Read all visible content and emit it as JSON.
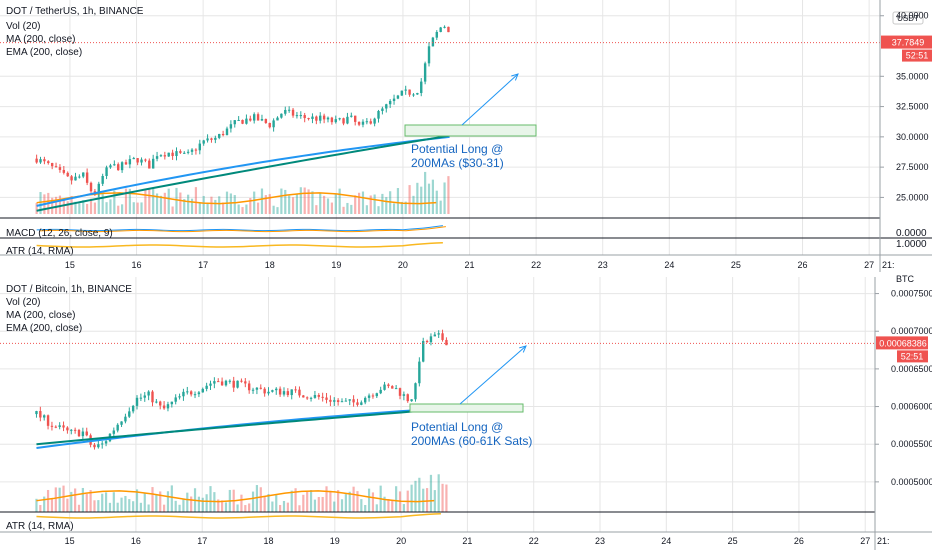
{
  "colors": {
    "up": "#26a69a",
    "down": "#ef5350",
    "ma200": "#2196f3",
    "ema200": "#00897b",
    "vol_ma": "#ff9800",
    "atr": "#f9b820",
    "annotation": "#1565c0",
    "box_fill": "#e8f5e9",
    "box_stroke": "#66bb6a",
    "price_tag": "#ef5350",
    "grid": "#e6e6e6"
  },
  "charts": [
    {
      "id": "usdt",
      "title": "DOT / TetherUS, 1h, BINANCE",
      "currency_label": "USDT",
      "indicators": [
        "Vol (20)",
        "MA (200, close)",
        "EMA (200, close)"
      ],
      "y_ticks": [
        "40.0000",
        "35.0000",
        "32.5000",
        "30.0000",
        "27.5000",
        "25.0000"
      ],
      "y_tick_values": [
        40,
        35,
        32.5,
        30,
        27.5,
        25
      ],
      "last_price": "37.7849",
      "last_value": 37.7849,
      "countdown": "52:51",
      "annotation": [
        "Potential Long @",
        "200MAs ($30-31)"
      ],
      "target_box": [
        30,
        31
      ],
      "macd_label": "MACD (12, 26, close, 9)",
      "macd_value": "0.0000",
      "atr_label": "ATR (14, RMA)",
      "atr_value": "1.0000"
    },
    {
      "id": "btc",
      "title": "DOT / Bitcoin, 1h, BINANCE",
      "currency_label": "BTC",
      "indicators": [
        "Vol (20)",
        "MA (200, close)",
        "EMA (200, close)"
      ],
      "y_ticks": [
        "0.00075000",
        "0.00070000",
        "0.00065000",
        "0.00060000",
        "0.00055000",
        "0.00050000"
      ],
      "y_tick_values": [
        0.00075,
        0.0007,
        0.00065,
        0.0006,
        0.00055,
        0.0005
      ],
      "last_price": "0.00068386",
      "last_value": 0.00068386,
      "countdown": "52:51",
      "annotation": [
        "Potential Long @",
        "200MAs (60-61K Sats)"
      ],
      "target_box": [
        0.0006,
        0.00061
      ],
      "atr_label": "ATR (14, RMA)"
    }
  ],
  "x_ticks": [
    "15",
    "16",
    "17",
    "18",
    "19",
    "20",
    "21",
    "22",
    "23",
    "24",
    "25",
    "26",
    "27",
    "21:"
  ],
  "chart_data": [
    {
      "type": "candlestick",
      "title": "DOT / TetherUS, 1h, BINANCE",
      "ylim": [
        23.3,
        41.3
      ],
      "x_days": [
        15,
        16,
        17,
        18,
        19,
        20,
        21,
        22,
        23,
        24,
        25,
        26,
        27
      ],
      "close_path_x": [
        14.5,
        14.75,
        15,
        15.2,
        15.3,
        15.4,
        15.5,
        15.6,
        15.75,
        16,
        16.2,
        16.3,
        16.5,
        16.75,
        17,
        17.2,
        17.5,
        17.75,
        18,
        18.2,
        18.5,
        18.75,
        19,
        19.2,
        19.35,
        19.5,
        19.75,
        20,
        20.15,
        20.25,
        20.4,
        20.5,
        20.6,
        20.7
      ],
      "close_path_y": [
        28.2,
        27.4,
        26.4,
        26.8,
        25.6,
        25.4,
        26.8,
        27.6,
        27.5,
        28.2,
        27.6,
        28.6,
        28.7,
        28.4,
        29.6,
        29.9,
        31.2,
        31.6,
        31.0,
        32.1,
        31.6,
        31.5,
        31.2,
        31.6,
        30.8,
        31.3,
        32.5,
        33.6,
        33.7,
        34.0,
        37.5,
        38.5,
        39.3,
        38.8
      ],
      "ma200": {
        "x": [
          14.5,
          20.7
        ],
        "y": [
          24.3,
          30.0
        ]
      },
      "ema200": {
        "x": [
          14.5,
          20.7
        ],
        "y": [
          23.9,
          30.1
        ]
      },
      "last": 37.7849,
      "target_zone": [
        30,
        31
      ]
    },
    {
      "type": "candlestick",
      "title": "DOT / Bitcoin, 1h, BINANCE",
      "ylim": [
        0.00046,
        0.000772
      ],
      "x_days": [
        15,
        16,
        17,
        18,
        19,
        20,
        21,
        22,
        23,
        24,
        25,
        26,
        27
      ],
      "close_path_x": [
        14.5,
        14.75,
        15,
        15.2,
        15.35,
        15.5,
        15.75,
        16,
        16.2,
        16.4,
        16.7,
        17,
        17.2,
        17.5,
        17.75,
        18,
        18.3,
        18.6,
        18.9,
        19.1,
        19.3,
        19.5,
        19.7,
        19.9,
        20.1,
        20.2,
        20.3,
        20.45,
        20.55,
        20.7
      ],
      "close_path_y": [
        0.00059,
        0.000575,
        0.000565,
        0.000566,
        0.000545,
        0.00055,
        0.00058,
        0.00061,
        0.000615,
        0.000595,
        0.000615,
        0.000625,
        0.000635,
        0.00063,
        0.000625,
        0.00062,
        0.00062,
        0.000615,
        0.00061,
        0.000605,
        0.000605,
        0.000615,
        0.000625,
        0.000625,
        0.00061,
        0.000615,
        0.00068,
        0.00069,
        0.000693,
        0.000686
      ],
      "ma200": {
        "x": [
          14.5,
          20.7
        ],
        "y": [
          0.000545,
          0.000598
        ]
      },
      "ema200": {
        "x": [
          14.5,
          20.7
        ],
        "y": [
          0.00055,
          0.000597
        ]
      },
      "last": 0.00068386,
      "target_zone": [
        0.0006,
        0.00061
      ]
    }
  ]
}
